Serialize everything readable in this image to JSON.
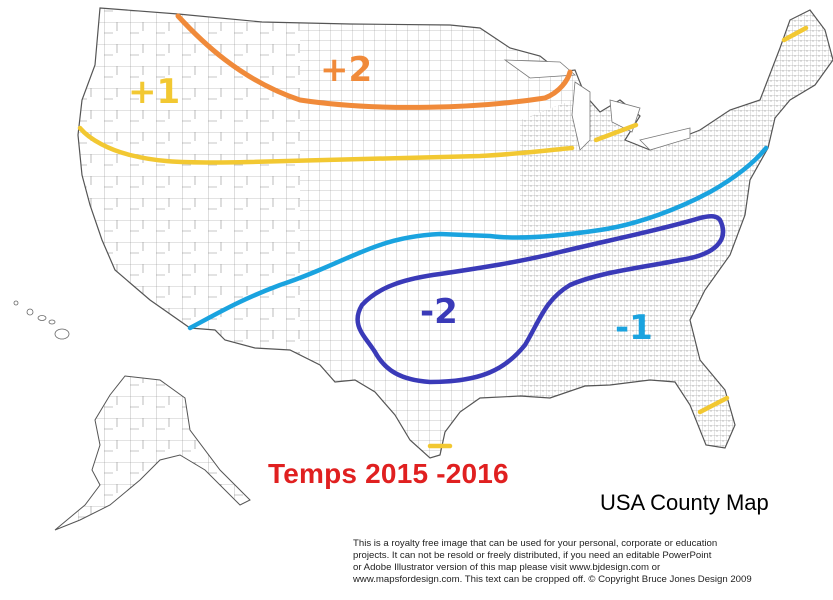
{
  "map": {
    "title": "USA County Map",
    "overlay_title": "Temps 2015 -2016",
    "copyright_lines": [
      "This is a royalty free image that can be used for your personal, corporate or education",
      "projects. It can not be resold or freely distributed, if you need an editable PowerPoint",
      "or Adobe Illustrator version of this map please visit www.bjdesign.com or",
      "www.mapsfordesign.com.  This text can be cropped off.  © Copyright Bruce Jones Design 2009"
    ],
    "annotations": {
      "plus_two": "+2",
      "plus_one": "+1",
      "minus_two": "-2",
      "minus_one": "-1"
    },
    "colors": {
      "orange": "#f08a3a",
      "yellow": "#f2c832",
      "light_blue": "#1aa3df",
      "dark_blue": "#3a3ab8",
      "red_title": "#e02020",
      "county_lines": "#9a9a9a"
    }
  }
}
